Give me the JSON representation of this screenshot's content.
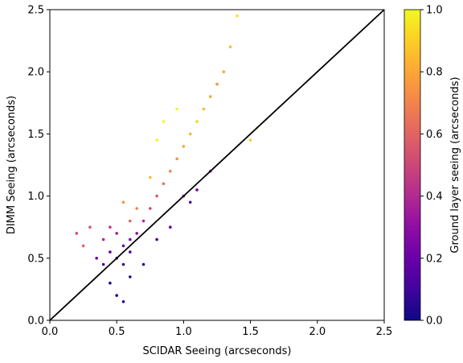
{
  "chart_data": {
    "type": "scatter",
    "xlabel": "SCIDAR Seeing (arcseconds)",
    "ylabel": "DIMM Seeing (arcseconds)",
    "xlim": [
      0.0,
      2.5
    ],
    "ylim": [
      0.0,
      2.5
    ],
    "xticks": [
      "0.0",
      "0.5",
      "1.0",
      "1.5",
      "2.0",
      "2.5"
    ],
    "yticks": [
      "0.0",
      "0.5",
      "1.0",
      "1.5",
      "2.0",
      "2.5"
    ],
    "grid": false,
    "reference_line": {
      "x": [
        0.0,
        2.5
      ],
      "y": [
        0.0,
        2.5
      ],
      "color": "#000000"
    },
    "colorbar": {
      "label": "Ground layer seeing (arcseconds)",
      "colormap": "plasma",
      "range": [
        0.0,
        1.0
      ],
      "ticks": [
        "0.0",
        "0.2",
        "0.4",
        "0.6",
        "0.8",
        "1.0"
      ]
    },
    "points": [
      {
        "x": 0.4,
        "y": 0.45,
        "c": 0.1
      },
      {
        "x": 0.45,
        "y": 0.55,
        "c": 0.15
      },
      {
        "x": 0.5,
        "y": 0.5,
        "c": 0.12
      },
      {
        "x": 0.55,
        "y": 0.6,
        "c": 0.2
      },
      {
        "x": 0.6,
        "y": 0.65,
        "c": 0.25
      },
      {
        "x": 0.5,
        "y": 0.7,
        "c": 0.35
      },
      {
        "x": 0.45,
        "y": 0.75,
        "c": 0.45
      },
      {
        "x": 0.4,
        "y": 0.65,
        "c": 0.4
      },
      {
        "x": 0.35,
        "y": 0.5,
        "c": 0.2
      },
      {
        "x": 0.55,
        "y": 0.45,
        "c": 0.08
      },
      {
        "x": 0.6,
        "y": 0.55,
        "c": 0.12
      },
      {
        "x": 0.65,
        "y": 0.7,
        "c": 0.3
      },
      {
        "x": 0.7,
        "y": 0.8,
        "c": 0.4
      },
      {
        "x": 0.75,
        "y": 0.9,
        "c": 0.5
      },
      {
        "x": 0.8,
        "y": 1.0,
        "c": 0.55
      },
      {
        "x": 0.85,
        "y": 1.1,
        "c": 0.65
      },
      {
        "x": 0.9,
        "y": 1.2,
        "c": 0.7
      },
      {
        "x": 0.95,
        "y": 1.3,
        "c": 0.75
      },
      {
        "x": 1.0,
        "y": 1.4,
        "c": 0.8
      },
      {
        "x": 1.05,
        "y": 1.5,
        "c": 0.85
      },
      {
        "x": 1.1,
        "y": 1.6,
        "c": 0.9
      },
      {
        "x": 1.15,
        "y": 1.7,
        "c": 0.85
      },
      {
        "x": 1.2,
        "y": 1.8,
        "c": 0.8
      },
      {
        "x": 1.25,
        "y": 1.9,
        "c": 0.75
      },
      {
        "x": 1.3,
        "y": 2.0,
        "c": 0.8
      },
      {
        "x": 1.35,
        "y": 2.2,
        "c": 0.85
      },
      {
        "x": 1.4,
        "y": 2.45,
        "c": 0.95
      },
      {
        "x": 1.0,
        "y": 1.0,
        "c": 0.3
      },
      {
        "x": 1.1,
        "y": 1.05,
        "c": 0.2
      },
      {
        "x": 1.2,
        "y": 1.2,
        "c": 0.35
      },
      {
        "x": 0.9,
        "y": 0.75,
        "c": 0.15
      },
      {
        "x": 0.8,
        "y": 0.65,
        "c": 0.1
      },
      {
        "x": 0.7,
        "y": 0.45,
        "c": 0.05
      },
      {
        "x": 0.6,
        "y": 0.35,
        "c": 0.05
      },
      {
        "x": 0.45,
        "y": 0.3,
        "c": 0.05
      },
      {
        "x": 0.5,
        "y": 0.2,
        "c": 0.05
      },
      {
        "x": 0.55,
        "y": 0.15,
        "c": 0.05
      },
      {
        "x": 0.3,
        "y": 0.75,
        "c": 0.55
      },
      {
        "x": 0.25,
        "y": 0.6,
        "c": 0.6
      },
      {
        "x": 0.2,
        "y": 0.7,
        "c": 0.5
      },
      {
        "x": 0.8,
        "y": 1.45,
        "c": 1.0
      },
      {
        "x": 0.85,
        "y": 1.6,
        "c": 1.0
      },
      {
        "x": 0.95,
        "y": 1.7,
        "c": 1.0
      },
      {
        "x": 1.5,
        "y": 1.45,
        "c": 0.9
      },
      {
        "x": 1.55,
        "y": 1.55,
        "c": 1.0
      },
      {
        "x": 1.05,
        "y": 0.95,
        "c": 0.15
      },
      {
        "x": 0.65,
        "y": 0.9,
        "c": 0.7
      },
      {
        "x": 0.75,
        "y": 1.15,
        "c": 0.85
      },
      {
        "x": 0.6,
        "y": 0.8,
        "c": 0.6
      },
      {
        "x": 0.55,
        "y": 0.95,
        "c": 0.75
      }
    ]
  }
}
